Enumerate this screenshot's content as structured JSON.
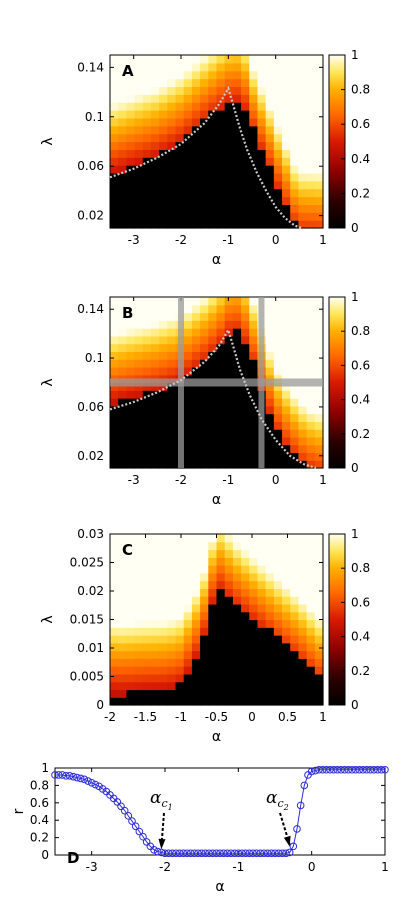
{
  "chart_data": [
    {
      "type": "heatmap",
      "panel_label": "A",
      "xlabel": "α",
      "ylabel": "λ",
      "xlim": [
        -3.5,
        1
      ],
      "ylim": [
        0.01,
        0.15
      ],
      "xticks": [
        -3,
        -2,
        -1,
        0,
        1
      ],
      "xtick_labels": [
        "-3",
        "-2",
        "-1",
        "0",
        "1"
      ],
      "yticks": [
        0.02,
        0.06,
        0.1,
        0.14
      ],
      "ytick_labels": [
        "0.02",
        "0.06",
        "0.1",
        "0.14"
      ],
      "colorbar": {
        "min": 0,
        "max": 1,
        "ticks": [
          0,
          0.2,
          0.4,
          0.6,
          0.8,
          1
        ],
        "tick_labels": [
          "0",
          "0.2",
          "0.4",
          "0.6",
          "0.8",
          "1"
        ]
      },
      "boundary": [
        [
          -3.5,
          0.052
        ],
        [
          -3,
          0.06
        ],
        [
          -2.5,
          0.068
        ],
        [
          -2,
          0.08
        ],
        [
          -1.5,
          0.097
        ],
        [
          -1.2,
          0.107
        ],
        [
          -1.0,
          0.113
        ],
        [
          -0.75,
          0.115
        ],
        [
          -0.6,
          0.105
        ],
        [
          -0.5,
          0.092
        ],
        [
          -0.3,
          0.075
        ],
        [
          -0.1,
          0.058
        ],
        [
          0.1,
          0.04
        ],
        [
          0.3,
          0.024
        ],
        [
          0.45,
          0.01
        ]
      ],
      "theory_curve": [
        [
          -3.5,
          0.051
        ],
        [
          -3,
          0.058
        ],
        [
          -2.5,
          0.067
        ],
        [
          -2,
          0.078
        ],
        [
          -1.5,
          0.095
        ],
        [
          -1.2,
          0.11
        ],
        [
          -1.0,
          0.123
        ],
        [
          -0.9,
          0.11
        ],
        [
          -0.75,
          0.09
        ],
        [
          -0.6,
          0.073
        ],
        [
          -0.4,
          0.055
        ],
        [
          -0.2,
          0.04
        ],
        [
          0,
          0.027
        ],
        [
          0.2,
          0.018
        ],
        [
          0.4,
          0.012
        ],
        [
          0.55,
          0.01
        ]
      ]
    },
    {
      "type": "heatmap",
      "panel_label": "B",
      "xlabel": "α",
      "ylabel": "λ",
      "xlim": [
        -3.5,
        1
      ],
      "ylim": [
        0.01,
        0.15
      ],
      "xticks": [
        -3,
        -2,
        -1,
        0,
        1
      ],
      "xtick_labels": [
        "-3",
        "-2",
        "-1",
        "0",
        "1"
      ],
      "yticks": [
        0.02,
        0.06,
        0.1,
        0.14
      ],
      "ytick_labels": [
        "0.02",
        "0.06",
        "0.1",
        "0.14"
      ],
      "colorbar": {
        "min": 0,
        "max": 1,
        "ticks": [
          0,
          0.2,
          0.4,
          0.6,
          0.8,
          1
        ],
        "tick_labels": [
          "0",
          "0.2",
          "0.4",
          "0.6",
          "0.8",
          "1"
        ]
      },
      "guide_lines": {
        "vertical_alpha": [
          -2.0,
          -0.3
        ],
        "horizontal_lambda": [
          0.08
        ]
      },
      "boundary": [
        [
          -3.5,
          0.062
        ],
        [
          -3,
          0.068
        ],
        [
          -2.5,
          0.074
        ],
        [
          -2,
          0.082
        ],
        [
          -1.5,
          0.098
        ],
        [
          -1.2,
          0.11
        ],
        [
          -1.0,
          0.121
        ],
        [
          -0.8,
          0.123
        ],
        [
          -0.6,
          0.112
        ],
        [
          -0.45,
          0.095
        ],
        [
          -0.25,
          0.07
        ],
        [
          0,
          0.045
        ],
        [
          0.3,
          0.027
        ],
        [
          0.6,
          0.015
        ],
        [
          0.85,
          0.01
        ]
      ],
      "theory_curve": [
        [
          -3.5,
          0.058
        ],
        [
          -3,
          0.064
        ],
        [
          -2.5,
          0.072
        ],
        [
          -2,
          0.082
        ],
        [
          -1.5,
          0.097
        ],
        [
          -1.2,
          0.11
        ],
        [
          -1.0,
          0.123
        ],
        [
          -0.9,
          0.11
        ],
        [
          -0.75,
          0.09
        ],
        [
          -0.55,
          0.07
        ],
        [
          -0.3,
          0.05
        ],
        [
          0,
          0.033
        ],
        [
          0.3,
          0.02
        ],
        [
          0.6,
          0.013
        ],
        [
          0.85,
          0.01
        ]
      ]
    },
    {
      "type": "heatmap",
      "panel_label": "C",
      "xlabel": "α",
      "ylabel": "λ",
      "xlim": [
        -2,
        1
      ],
      "ylim": [
        0,
        0.03
      ],
      "xticks": [
        -2,
        -1.5,
        -1,
        -0.5,
        0,
        0.5,
        1
      ],
      "xtick_labels": [
        "-2",
        "-1.5",
        "-1",
        "-0.5",
        "0",
        "0.5",
        "1"
      ],
      "yticks": [
        0,
        0.005,
        0.01,
        0.015,
        0.02,
        0.025,
        0.03
      ],
      "ytick_labels": [
        "0",
        "0.005",
        "0.01",
        "0.015",
        "0.02",
        "0.025",
        "0.03"
      ],
      "colorbar": {
        "min": 0,
        "max": 1,
        "ticks": [
          0,
          0.2,
          0.4,
          0.6,
          0.8,
          1
        ],
        "tick_labels": [
          "0",
          "0.2",
          "0.4",
          "0.6",
          "0.8",
          "1"
        ]
      },
      "boundary": [
        [
          -2,
          0.002
        ],
        [
          -1.8,
          0.002
        ],
        [
          -1.55,
          0.0025
        ],
        [
          -1.2,
          0.003
        ],
        [
          -1.0,
          0.004
        ],
        [
          -0.85,
          0.007
        ],
        [
          -0.7,
          0.011
        ],
        [
          -0.6,
          0.016
        ],
        [
          -0.5,
          0.021
        ],
        [
          -0.4,
          0.02
        ],
        [
          -0.25,
          0.018
        ],
        [
          -0.1,
          0.0165
        ],
        [
          0.1,
          0.0145
        ],
        [
          0.3,
          0.0125
        ],
        [
          0.5,
          0.0105
        ],
        [
          0.7,
          0.0085
        ],
        [
          0.9,
          0.006
        ],
        [
          1,
          0.005
        ]
      ]
    },
    {
      "type": "scatter",
      "panel_label": "D",
      "xlabel": "α",
      "ylabel": "r",
      "xlim": [
        -3.5,
        1
      ],
      "ylim": [
        0,
        1
      ],
      "xticks": [
        -3,
        -2,
        -1,
        0,
        1
      ],
      "xtick_labels": [
        "-3",
        "-2",
        "-1",
        "0",
        "1"
      ],
      "yticks": [
        0,
        0.2,
        0.4,
        0.6,
        0.8,
        1
      ],
      "ytick_labels": [
        "0",
        "0.2",
        "0.4",
        "0.6",
        "0.8",
        "1"
      ],
      "annotations": [
        {
          "text": "α",
          "subscript": "c",
          "subsub": "1",
          "x": -2.05,
          "y": 0.02
        },
        {
          "text": "α",
          "subscript": "c",
          "subsub": "2",
          "x": -0.3,
          "y": 0.05
        }
      ],
      "series": [
        {
          "color": "#2c2cd8",
          "x": [
            -3.5,
            -3.45,
            -3.4,
            -3.35,
            -3.3,
            -3.25,
            -3.2,
            -3.15,
            -3.1,
            -3.05,
            -3,
            -2.95,
            -2.9,
            -2.85,
            -2.8,
            -2.75,
            -2.7,
            -2.65,
            -2.6,
            -2.55,
            -2.5,
            -2.45,
            -2.4,
            -2.35,
            -2.3,
            -2.25,
            -2.2,
            -2.15,
            -2.1,
            -2.05,
            -2,
            -1.95,
            -1.9,
            -1.85,
            -1.8,
            -1.75,
            -1.7,
            -1.65,
            -1.6,
            -1.55,
            -1.5,
            -1.45,
            -1.4,
            -1.35,
            -1.3,
            -1.25,
            -1.2,
            -1.15,
            -1.1,
            -1.05,
            -1,
            -0.95,
            -0.9,
            -0.85,
            -0.8,
            -0.75,
            -0.7,
            -0.65,
            -0.6,
            -0.55,
            -0.5,
            -0.45,
            -0.4,
            -0.35,
            -0.3,
            -0.25,
            -0.2,
            -0.15,
            -0.1,
            -0.05,
            0,
            0.05,
            0.1,
            0.15,
            0.2,
            0.25,
            0.3,
            0.35,
            0.4,
            0.45,
            0.5,
            0.55,
            0.6,
            0.65,
            0.7,
            0.75,
            0.8,
            0.85,
            0.9,
            0.95,
            1
          ],
          "y": [
            0.92,
            0.92,
            0.92,
            0.91,
            0.91,
            0.9,
            0.89,
            0.88,
            0.87,
            0.85,
            0.83,
            0.81,
            0.79,
            0.76,
            0.73,
            0.69,
            0.65,
            0.61,
            0.56,
            0.51,
            0.45,
            0.39,
            0.33,
            0.27,
            0.21,
            0.15,
            0.1,
            0.06,
            0.04,
            0.03,
            0.02,
            0.02,
            0.02,
            0.02,
            0.02,
            0.02,
            0.02,
            0.02,
            0.02,
            0.02,
            0.02,
            0.02,
            0.02,
            0.02,
            0.02,
            0.02,
            0.02,
            0.02,
            0.02,
            0.02,
            0.02,
            0.02,
            0.02,
            0.02,
            0.02,
            0.02,
            0.02,
            0.02,
            0.02,
            0.02,
            0.02,
            0.02,
            0.02,
            0.02,
            0.03,
            0.1,
            0.3,
            0.57,
            0.8,
            0.92,
            0.96,
            0.97,
            0.98,
            0.98,
            0.98,
            0.98,
            0.98,
            0.98,
            0.98,
            0.98,
            0.98,
            0.98,
            0.98,
            0.98,
            0.98,
            0.98,
            0.98,
            0.98,
            0.98,
            0.98,
            0.98
          ]
        }
      ]
    }
  ]
}
